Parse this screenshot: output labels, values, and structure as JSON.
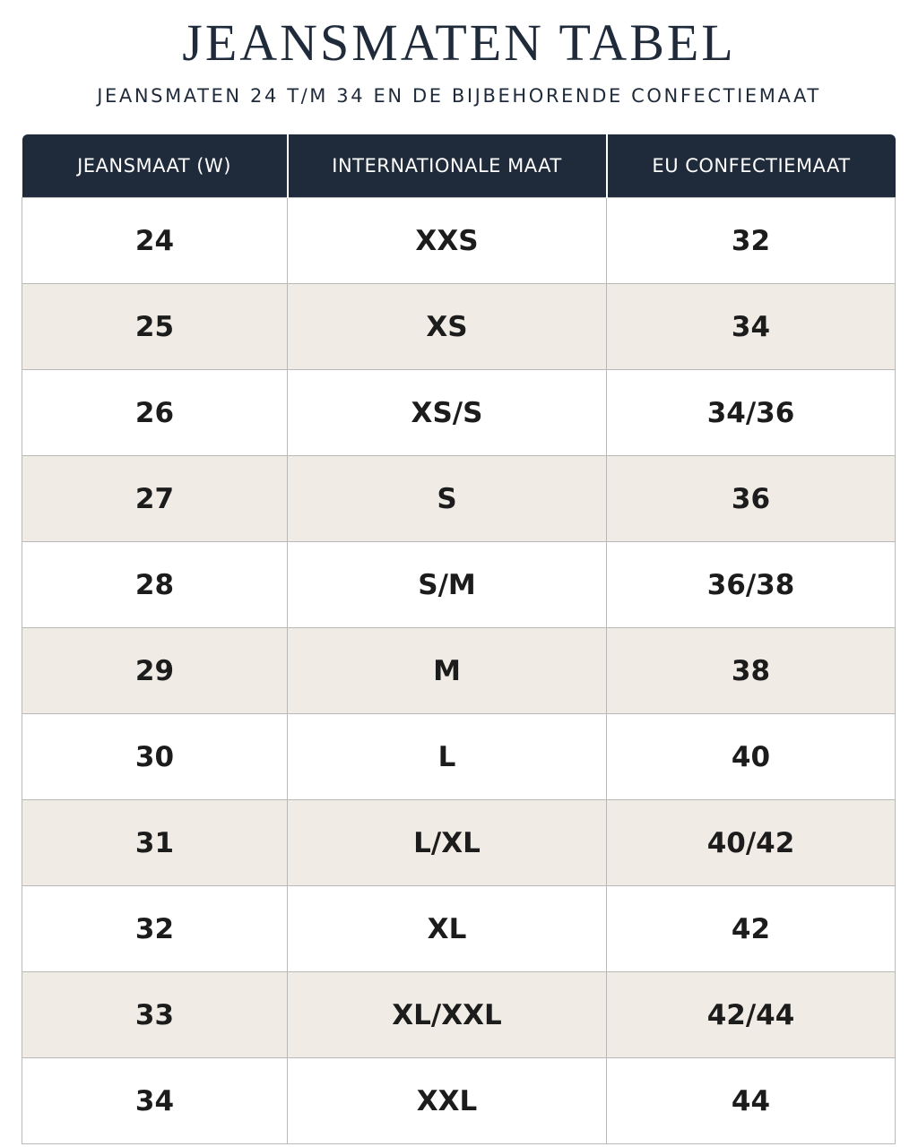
{
  "header": {
    "title": "JEANSMATEN TABEL",
    "subtitle": "JEANSMATEN 24 T/M 34 EN DE BIJBEHORENDE CONFECTIEMAAT"
  },
  "table": {
    "columns": [
      "JEANSMAAT (W)",
      "INTERNATIONALE MAAT",
      "EU CONFECTIEMAAT"
    ],
    "rows": [
      [
        "24",
        "XXS",
        "32"
      ],
      [
        "25",
        "XS",
        "34"
      ],
      [
        "26",
        "XS/S",
        "34/36"
      ],
      [
        "27",
        "S",
        "36"
      ],
      [
        "28",
        "S/M",
        "36/38"
      ],
      [
        "29",
        "M",
        "38"
      ],
      [
        "30",
        "L",
        "40"
      ],
      [
        "31",
        "L/XL",
        "40/42"
      ],
      [
        "32",
        "XL",
        "42"
      ],
      [
        "33",
        "XL/XXL",
        "42/44"
      ],
      [
        "34",
        "XXL",
        "44"
      ]
    ]
  }
}
